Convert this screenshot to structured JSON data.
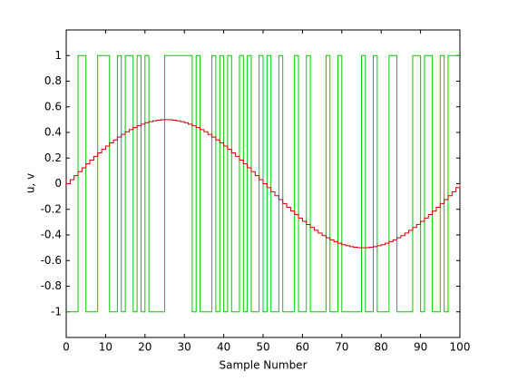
{
  "chart_data": {
    "type": "stairs",
    "xlabel": "Sample Number",
    "ylabel": "u, v",
    "x": [
      0,
      1,
      2,
      3,
      4,
      5,
      6,
      7,
      8,
      9,
      10,
      11,
      12,
      13,
      14,
      15,
      16,
      17,
      18,
      19,
      20,
      21,
      22,
      23,
      24,
      25,
      26,
      27,
      28,
      29,
      30,
      31,
      32,
      33,
      34,
      35,
      36,
      37,
      38,
      39,
      40,
      41,
      42,
      43,
      44,
      45,
      46,
      47,
      48,
      49,
      50,
      51,
      52,
      53,
      54,
      55,
      56,
      57,
      58,
      59,
      60,
      61,
      62,
      63,
      64,
      65,
      66,
      67,
      68,
      69,
      70,
      71,
      72,
      73,
      74,
      75,
      76,
      77,
      78,
      79,
      80,
      81,
      82,
      83,
      84,
      85,
      86,
      87,
      88,
      89,
      90,
      91,
      92,
      93,
      94,
      95,
      96,
      97,
      98,
      99,
      100
    ],
    "series": [
      {
        "color": "#00cc00",
        "values": [
          -1,
          -1,
          -1,
          1,
          1,
          -1,
          -1,
          -1,
          1,
          1,
          1,
          -1,
          -1,
          1,
          -1,
          1,
          1,
          -1,
          1,
          -1,
          1,
          -1,
          -1,
          -1,
          -1,
          1,
          1,
          1,
          1,
          1,
          1,
          1,
          -1,
          1,
          -1,
          -1,
          -1,
          1,
          -1,
          1,
          -1,
          1,
          -1,
          -1,
          1,
          -1,
          1,
          -1,
          -1,
          1,
          -1,
          1,
          -1,
          -1,
          1,
          -1,
          -1,
          -1,
          1,
          -1,
          -1,
          1,
          -1,
          -1,
          -1,
          -1,
          1,
          -1,
          -1,
          1,
          -1,
          -1,
          -1,
          -1,
          -1,
          1,
          -1,
          -1,
          1,
          -1,
          -1,
          -1,
          1,
          1,
          -1,
          -1,
          -1,
          -1,
          1,
          1,
          -1,
          1,
          1,
          -1,
          -1,
          1,
          -1,
          1,
          1,
          1,
          1
        ]
      },
      {
        "color": "#cc0000",
        "values": [
          0,
          0.031,
          0.063,
          0.094,
          0.124,
          0.155,
          0.184,
          0.213,
          0.241,
          0.268,
          0.294,
          0.319,
          0.342,
          0.364,
          0.385,
          0.405,
          0.422,
          0.438,
          0.452,
          0.465,
          0.476,
          0.484,
          0.491,
          0.496,
          0.499,
          0.5,
          0.499,
          0.496,
          0.491,
          0.484,
          0.476,
          0.465,
          0.452,
          0.438,
          0.422,
          0.405,
          0.385,
          0.364,
          0.342,
          0.319,
          0.294,
          0.268,
          0.241,
          0.213,
          0.184,
          0.155,
          0.124,
          0.094,
          0.063,
          0.031,
          0,
          -0.031,
          -0.063,
          -0.094,
          -0.124,
          -0.155,
          -0.184,
          -0.213,
          -0.241,
          -0.268,
          -0.294,
          -0.319,
          -0.342,
          -0.364,
          -0.385,
          -0.405,
          -0.422,
          -0.438,
          -0.452,
          -0.465,
          -0.476,
          -0.484,
          -0.491,
          -0.496,
          -0.499,
          -0.5,
          -0.499,
          -0.496,
          -0.491,
          -0.484,
          -0.476,
          -0.465,
          -0.452,
          -0.438,
          -0.422,
          -0.405,
          -0.385,
          -0.364,
          -0.342,
          -0.319,
          -0.294,
          -0.268,
          -0.241,
          -0.213,
          -0.184,
          -0.155,
          -0.124,
          -0.094,
          -0.063,
          -0.031,
          0
        ]
      }
    ],
    "xlim": [
      0,
      100
    ],
    "xticks": [
      0,
      10,
      20,
      30,
      40,
      50,
      60,
      70,
      80,
      90,
      100
    ],
    "ylim": [
      -1.2,
      1.2
    ],
    "yticks": [
      -1,
      -0.8,
      -0.6,
      -0.4,
      -0.2,
      0,
      0.2,
      0.4,
      0.6,
      0.8,
      1
    ]
  }
}
